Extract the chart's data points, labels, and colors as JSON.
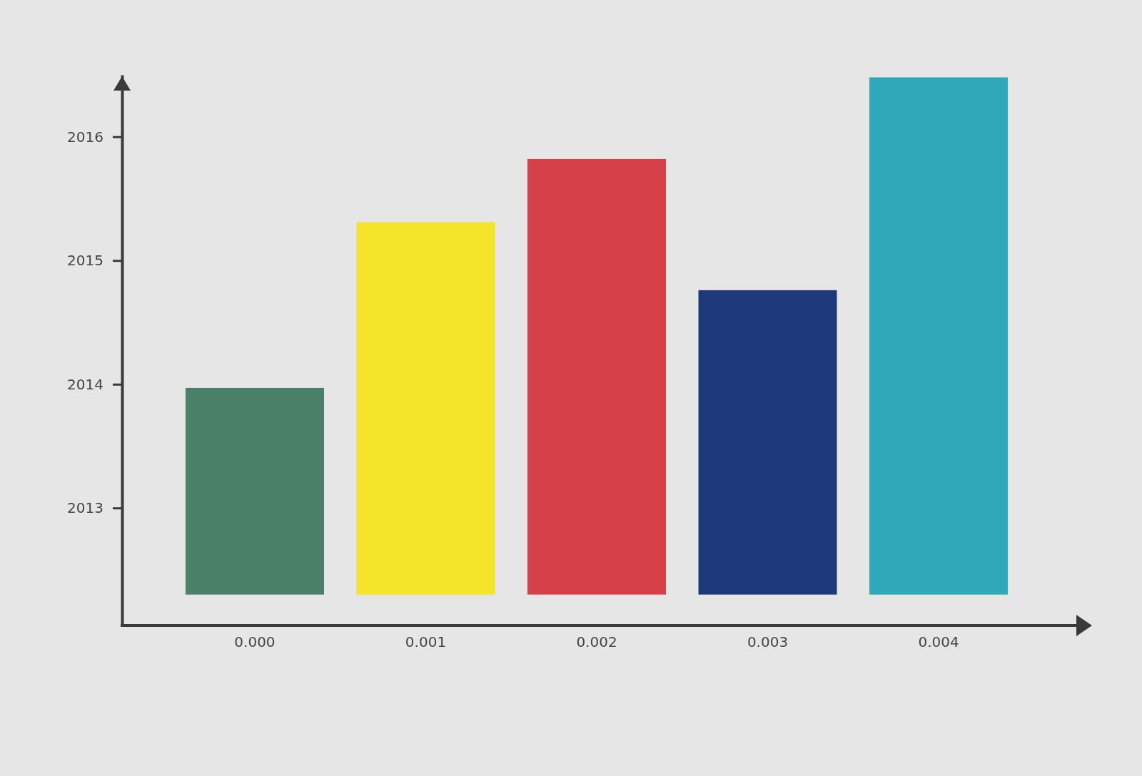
{
  "chart_data": {
    "type": "bar",
    "categories": [
      "0.000",
      "0.001",
      "0.002",
      "0.003",
      "0.004"
    ],
    "values": [
      1.67,
      3.01,
      3.52,
      2.46,
      4.18
    ],
    "base": [
      2012.3,
      2012.3,
      2012.3,
      2012.3,
      2012.3
    ],
    "colors": [
      "#4a8068",
      "#f4e52a",
      "#d64048",
      "#1f3a7a",
      "#2fa8b8"
    ],
    "ylim": [
      2012.05,
      2016.5
    ],
    "yticks": [
      2013,
      2014,
      2015,
      2016
    ],
    "grid": false
  }
}
